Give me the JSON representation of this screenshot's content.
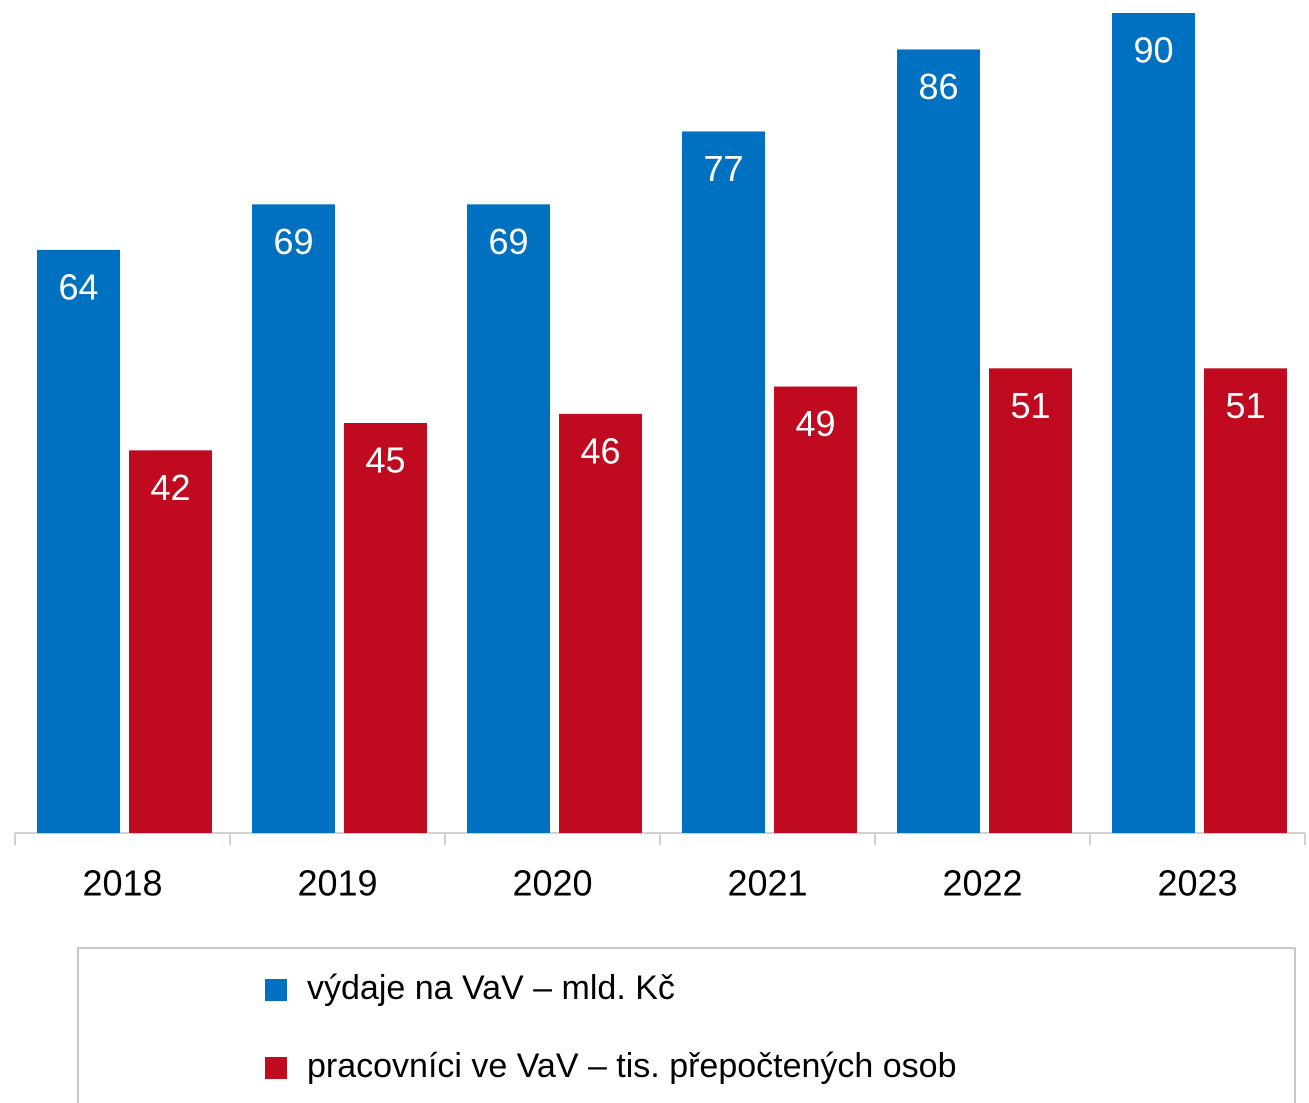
{
  "chart_data": {
    "type": "bar",
    "categories": [
      "2018",
      "2019",
      "2020",
      "2021",
      "2022",
      "2023"
    ],
    "series": [
      {
        "name": "výdaje na VaV – mld. Kč",
        "color": "#0070c0",
        "values": [
          64,
          69,
          69,
          77,
          86,
          90
        ]
      },
      {
        "name": "pracovníci ve VaV – tis. přepočtených osob",
        "color": "#c00a1f",
        "values": [
          42,
          45,
          46,
          49,
          51,
          51
        ]
      }
    ],
    "legend": "bottom"
  }
}
